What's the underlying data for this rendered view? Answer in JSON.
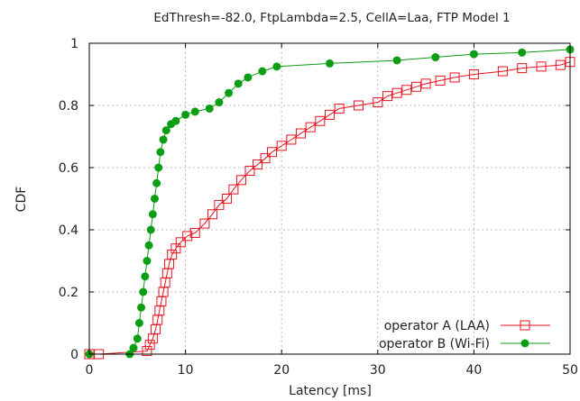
{
  "chart_data": {
    "type": "line",
    "title": "EdThresh=-82.0, FtpLambda=2.5, CellA=Laa, FTP Model 1",
    "xlabel": "Latency [ms]",
    "ylabel": "CDF",
    "xlim": [
      0,
      50
    ],
    "ylim": [
      0,
      1
    ],
    "xticks": [
      "0",
      "10",
      "20",
      "30",
      "40",
      "50"
    ],
    "yticks": [
      "0",
      "0.2",
      "0.4",
      "0.6",
      "0.8",
      "1"
    ],
    "grid": true,
    "legend_position": "bottom-right",
    "series": [
      {
        "name": "operator A (LAA)",
        "color": "#e8121f",
        "marker": "open-square",
        "points": [
          [
            0,
            0
          ],
          [
            1,
            0
          ],
          [
            6.0,
            0.01
          ],
          [
            6.3,
            0.03
          ],
          [
            6.6,
            0.05
          ],
          [
            6.9,
            0.08
          ],
          [
            7.1,
            0.11
          ],
          [
            7.3,
            0.14
          ],
          [
            7.5,
            0.17
          ],
          [
            7.7,
            0.2
          ],
          [
            7.9,
            0.23
          ],
          [
            8.1,
            0.26
          ],
          [
            8.3,
            0.29
          ],
          [
            8.6,
            0.32
          ],
          [
            9.0,
            0.34
          ],
          [
            9.5,
            0.36
          ],
          [
            10.2,
            0.38
          ],
          [
            11.0,
            0.39
          ],
          [
            12.0,
            0.42
          ],
          [
            12.8,
            0.45
          ],
          [
            13.5,
            0.48
          ],
          [
            14.3,
            0.5
          ],
          [
            15.0,
            0.53
          ],
          [
            15.8,
            0.56
          ],
          [
            16.7,
            0.59
          ],
          [
            17.5,
            0.61
          ],
          [
            18.3,
            0.63
          ],
          [
            19.0,
            0.65
          ],
          [
            20.0,
            0.67
          ],
          [
            21.0,
            0.69
          ],
          [
            22.0,
            0.71
          ],
          [
            23.0,
            0.73
          ],
          [
            24.0,
            0.75
          ],
          [
            25.0,
            0.77
          ],
          [
            26.0,
            0.79
          ],
          [
            28.0,
            0.8
          ],
          [
            30.0,
            0.81
          ],
          [
            31.0,
            0.83
          ],
          [
            32.0,
            0.84
          ],
          [
            33.0,
            0.85
          ],
          [
            34.0,
            0.86
          ],
          [
            35.0,
            0.87
          ],
          [
            36.5,
            0.88
          ],
          [
            38.0,
            0.89
          ],
          [
            40.0,
            0.9
          ],
          [
            43.0,
            0.91
          ],
          [
            45.0,
            0.92
          ],
          [
            47.0,
            0.925
          ],
          [
            49.0,
            0.93
          ],
          [
            50.0,
            0.94
          ]
        ]
      },
      {
        "name": "operator B (Wi-Fi)",
        "color": "#0b9e14",
        "marker": "filled-circle",
        "points": [
          [
            0,
            0
          ],
          [
            4.2,
            0.0
          ],
          [
            4.6,
            0.02
          ],
          [
            5.0,
            0.05
          ],
          [
            5.2,
            0.1
          ],
          [
            5.4,
            0.15
          ],
          [
            5.6,
            0.2
          ],
          [
            5.8,
            0.25
          ],
          [
            6.0,
            0.3
          ],
          [
            6.2,
            0.35
          ],
          [
            6.4,
            0.4
          ],
          [
            6.6,
            0.45
          ],
          [
            6.8,
            0.5
          ],
          [
            7.0,
            0.55
          ],
          [
            7.2,
            0.6
          ],
          [
            7.4,
            0.65
          ],
          [
            7.7,
            0.69
          ],
          [
            8.0,
            0.72
          ],
          [
            8.5,
            0.74
          ],
          [
            9.0,
            0.75
          ],
          [
            10.0,
            0.77
          ],
          [
            11.0,
            0.78
          ],
          [
            12.5,
            0.79
          ],
          [
            13.5,
            0.81
          ],
          [
            14.5,
            0.84
          ],
          [
            15.5,
            0.87
          ],
          [
            16.5,
            0.89
          ],
          [
            18.0,
            0.91
          ],
          [
            19.5,
            0.925
          ],
          [
            25.0,
            0.935
          ],
          [
            32.0,
            0.945
          ],
          [
            36.0,
            0.955
          ],
          [
            40.0,
            0.965
          ],
          [
            45.0,
            0.97
          ],
          [
            50.0,
            0.98
          ]
        ]
      }
    ]
  }
}
